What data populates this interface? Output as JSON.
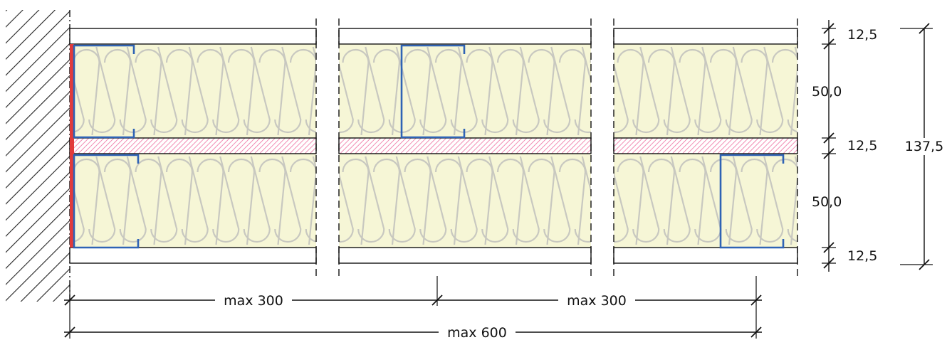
{
  "dimensions": {
    "layers": {
      "board_top": "12,5",
      "insulation_upper": "50,0",
      "board_middle": "12,5",
      "insulation_lower": "50,0",
      "board_bottom": "12,5"
    },
    "total_thickness": "137,5",
    "spacing_left": "max 300",
    "spacing_right": "max 300",
    "spacing_total": "max 600"
  },
  "colors": {
    "insulation_fill": "#f6f6d6",
    "insulation_stroke": "#c8c8c0",
    "board_fill": "#ffffff",
    "fire_strip": "#ee6fa0",
    "profile_stroke": "#2f63b5",
    "edge_strip": "#e23b3b",
    "wall_hatch": "#222222",
    "line": "#111111"
  },
  "components": {
    "wall": "hatched-masonry",
    "profile": "c-stud",
    "insulation": "mineral-wool"
  }
}
